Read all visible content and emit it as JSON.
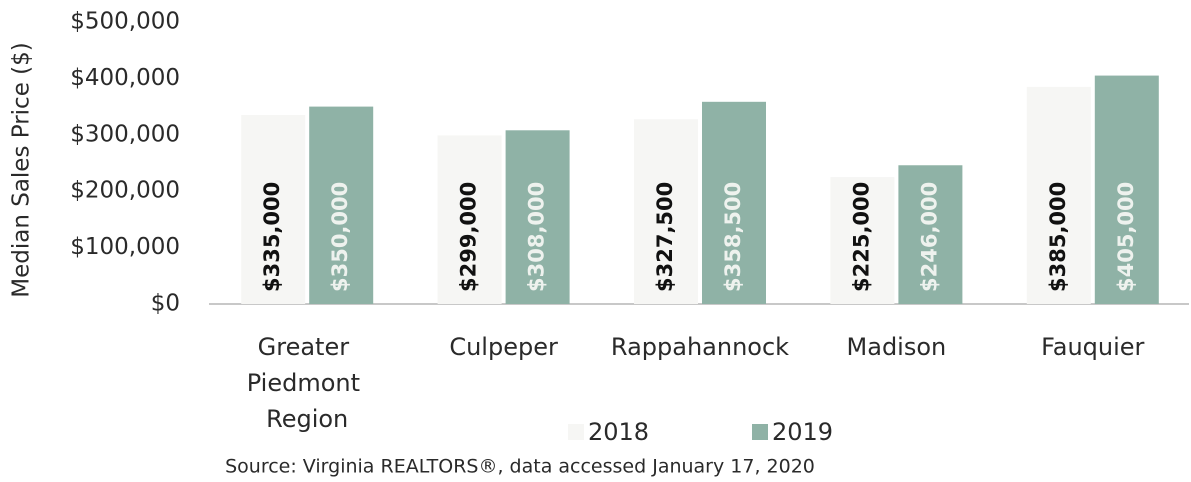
{
  "chart_data": {
    "type": "bar",
    "y_label": "Median Sales Price ($)",
    "categories": [
      "Greater Piedmont Region",
      "Culpeper",
      "Rappahannock",
      "Madison",
      "Fauquier"
    ],
    "series": [
      {
        "name": "2018",
        "color": "#f6f6f4",
        "values": [
          335000,
          299000,
          327500,
          225000,
          385000
        ],
        "value_labels": [
          "$335,000",
          "$299,000",
          "$327,500",
          "$225,000",
          "$385,000"
        ]
      },
      {
        "name": "2019",
        "color": "#8fb2a6",
        "values": [
          350000,
          308000,
          358500,
          246000,
          405000
        ],
        "value_labels": [
          "$350,000",
          "$308,000",
          "$358,500",
          "$246,000",
          "$405,000"
        ]
      }
    ],
    "ylim": [
      0,
      500000
    ],
    "yticks": [
      {
        "value": 0,
        "label": "$0"
      },
      {
        "value": 100000,
        "label": "$100,000"
      },
      {
        "value": 200000,
        "label": "$200,000"
      },
      {
        "value": 300000,
        "label": "$300,000"
      },
      {
        "value": 400000,
        "label": "$400,000"
      },
      {
        "value": 500000,
        "label": "$500,000"
      }
    ],
    "grid": false,
    "legend": "bottom",
    "source": "Source: Virginia REALTORS®, data accessed January 17, 2020"
  }
}
